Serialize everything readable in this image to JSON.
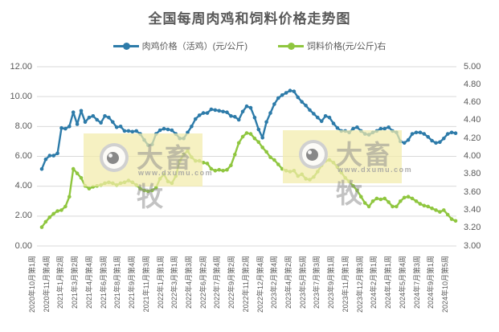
{
  "watermark": {
    "brand": "大畜牧",
    "url": "www.dxumu.com"
  },
  "chart_data": {
    "type": "line",
    "title": "全国每周肉鸡和饲料价格走势图",
    "grid": true,
    "legend_position": "top",
    "colors": {
      "grid": "#d9d9d9",
      "text": "#595959",
      "background": "#ffffff"
    },
    "left_axis": {
      "min": 0,
      "max": 12,
      "step": 2,
      "ticks": [
        "12.00",
        "10.00",
        "8.00",
        "6.00",
        "4.00",
        "2.00",
        "0.00"
      ]
    },
    "right_axis": {
      "min": 3,
      "max": 5,
      "step": 0.2,
      "ticks": [
        "5.00",
        "4.80",
        "4.60",
        "4.40",
        "4.20",
        "4.00",
        "3.80",
        "3.60",
        "3.40",
        "3.20",
        "3.00"
      ]
    },
    "x_labels": [
      "2020年10月第1周",
      "2020年11月第4周",
      "2021年1月第2周",
      "2021年3月第2周",
      "2021年4月第4周",
      "2021年6月第3周",
      "2021年8月第1周",
      "2021年9月第4周",
      "2021年11月第3周",
      "2022年1月第1周",
      "2022年3月第1周",
      "2022年4月第3周",
      "2022年6月第2周",
      "2022年7月第4周",
      "2022年9月第2周",
      "2022年11月第2周",
      "2022年12月第4周",
      "2023年2月第4周",
      "2023年4月第2周",
      "2023年5月第5周",
      "2023年7月第3周",
      "2023年9月第1周",
      "2023年11月第1周",
      "2023年12月第3周",
      "2024年2月第1周",
      "2024年4月第1周",
      "2024年5月第4周",
      "2024年7月第3周",
      "2024年9月第1周",
      "2024年10月第5周"
    ],
    "series": [
      {
        "key": "chicken-price",
        "name": "肉鸡价格（活鸡）(元/公斤)",
        "axis": "left",
        "color": "#2d7ba9",
        "values": [
          5.15,
          5.8,
          6.05,
          6.05,
          6.2,
          7.9,
          7.85,
          8.0,
          8.95,
          8.15,
          9.05,
          8.3,
          8.6,
          8.7,
          8.45,
          8.25,
          8.7,
          8.6,
          8.3,
          7.95,
          8.0,
          7.7,
          7.7,
          7.65,
          7.7,
          7.5,
          7.1,
          6.75,
          6.8,
          7.5,
          7.75,
          7.85,
          7.8,
          7.75,
          7.5,
          7.2,
          7.2,
          7.6,
          8.0,
          8.5,
          8.75,
          8.9,
          8.9,
          9.15,
          9.1,
          9.05,
          9.0,
          8.95,
          8.7,
          8.65,
          8.45,
          9.0,
          9.35,
          9.25,
          8.6,
          7.8,
          7.25,
          8.3,
          8.9,
          9.5,
          9.9,
          10.1,
          10.25,
          10.4,
          10.35,
          9.95,
          9.65,
          9.4,
          9.1,
          8.85,
          8.6,
          8.35,
          8.7,
          8.6,
          8.2,
          7.9,
          7.7,
          7.7,
          7.6,
          7.85,
          7.95,
          7.7,
          7.5,
          7.45,
          7.6,
          7.7,
          7.85,
          7.85,
          7.95,
          7.7,
          7.6,
          7.0,
          6.9,
          7.1,
          7.5,
          7.6,
          7.6,
          7.5,
          7.3,
          7.05,
          6.9,
          6.95,
          7.2,
          7.5,
          7.6,
          7.55
        ]
      },
      {
        "key": "feed-price",
        "name": "饲料价格(元/公斤)右",
        "axis": "right",
        "color": "#8fc63f",
        "values": [
          3.21,
          3.27,
          3.32,
          3.36,
          3.39,
          3.4,
          3.44,
          3.55,
          3.86,
          3.81,
          3.76,
          3.67,
          3.64,
          3.66,
          3.67,
          3.68,
          3.7,
          3.71,
          3.7,
          3.68,
          3.7,
          3.71,
          3.73,
          3.71,
          3.68,
          3.64,
          3.62,
          3.61,
          3.62,
          3.65,
          3.75,
          3.8,
          3.72,
          3.7,
          3.78,
          3.95,
          4.02,
          4.06,
          3.99,
          3.95,
          3.95,
          3.93,
          3.92,
          3.86,
          3.84,
          3.85,
          3.84,
          3.85,
          3.9,
          4.02,
          4.15,
          4.22,
          4.26,
          4.25,
          4.2,
          4.16,
          4.1,
          4.05,
          3.99,
          3.96,
          3.91,
          3.86,
          3.84,
          3.83,
          3.84,
          3.78,
          3.8,
          3.75,
          3.74,
          3.77,
          3.83,
          3.9,
          3.95,
          3.96,
          3.93,
          3.88,
          3.82,
          3.76,
          3.72,
          3.67,
          3.62,
          3.55,
          3.48,
          3.44,
          3.5,
          3.53,
          3.52,
          3.53,
          3.49,
          3.44,
          3.44,
          3.5,
          3.54,
          3.55,
          3.53,
          3.5,
          3.47,
          3.45,
          3.44,
          3.42,
          3.4,
          3.38,
          3.4,
          3.35,
          3.3,
          3.28
        ]
      }
    ]
  }
}
